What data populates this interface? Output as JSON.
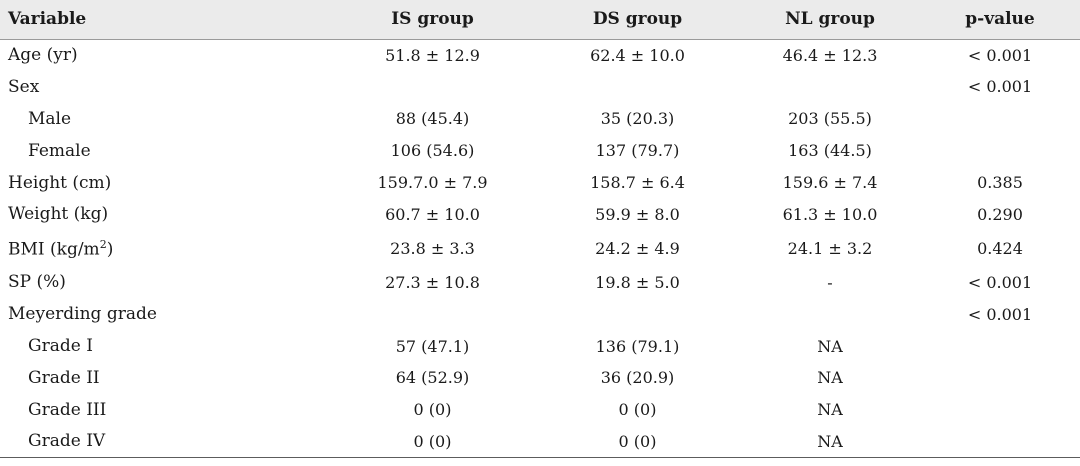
{
  "header": [
    "Variable",
    "IS group",
    "DS group",
    "NL group",
    "p-value"
  ],
  "rows": [
    {
      "variable": "Age (yr)",
      "indent": false,
      "is": "51.8 ± 12.9",
      "ds": "62.4 ± 10.0",
      "nl": "46.4 ± 12.3",
      "p": "< 0.001"
    },
    {
      "variable": "Sex",
      "indent": false,
      "is": "",
      "ds": "",
      "nl": "",
      "p": "< 0.001"
    },
    {
      "variable": "Male",
      "indent": true,
      "is": "88 (45.4)",
      "ds": "35 (20.3)",
      "nl": "203 (55.5)",
      "p": ""
    },
    {
      "variable": "Female",
      "indent": true,
      "is": "106 (54.6)",
      "ds": "137 (79.7)",
      "nl": "163 (44.5)",
      "p": ""
    },
    {
      "variable": "Height (cm)",
      "indent": false,
      "is": "159.7.0 ± 7.9",
      "ds": "158.7 ± 6.4",
      "nl": "159.6 ± 7.4",
      "p": "0.385"
    },
    {
      "variable": "Weight (kg)",
      "indent": false,
      "is": "60.7 ± 10.0",
      "ds": "59.9 ± 8.0",
      "nl": "61.3 ± 10.0",
      "p": "0.290"
    },
    {
      "variable": "BMI (kg/m",
      "sup": "2",
      "tail": ")",
      "indent": false,
      "is": "23.8 ± 3.3",
      "ds": "24.2 ± 4.9",
      "nl": "24.1 ± 3.2",
      "p": "0.424"
    },
    {
      "variable": "SP (%)",
      "indent": false,
      "is": "27.3 ± 10.8",
      "ds": "19.8 ± 5.0",
      "nl": "-",
      "p": "< 0.001"
    },
    {
      "variable": "Meyerding grade",
      "indent": false,
      "is": "",
      "ds": "",
      "nl": "",
      "p": "< 0.001"
    },
    {
      "variable": "Grade I",
      "indent": true,
      "is": "57 (47.1)",
      "ds": "136 (79.1)",
      "nl": "NA",
      "p": ""
    },
    {
      "variable": "Grade II",
      "indent": true,
      "is": "64 (52.9)",
      "ds": "36 (20.9)",
      "nl": "NA",
      "p": ""
    },
    {
      "variable": "Grade III",
      "indent": true,
      "is": "0 (0)",
      "ds": "0 (0)",
      "nl": "NA",
      "p": ""
    },
    {
      "variable": "Grade IV",
      "indent": true,
      "is": "0 (0)",
      "ds": "0 (0)",
      "nl": "NA",
      "p": ""
    }
  ]
}
